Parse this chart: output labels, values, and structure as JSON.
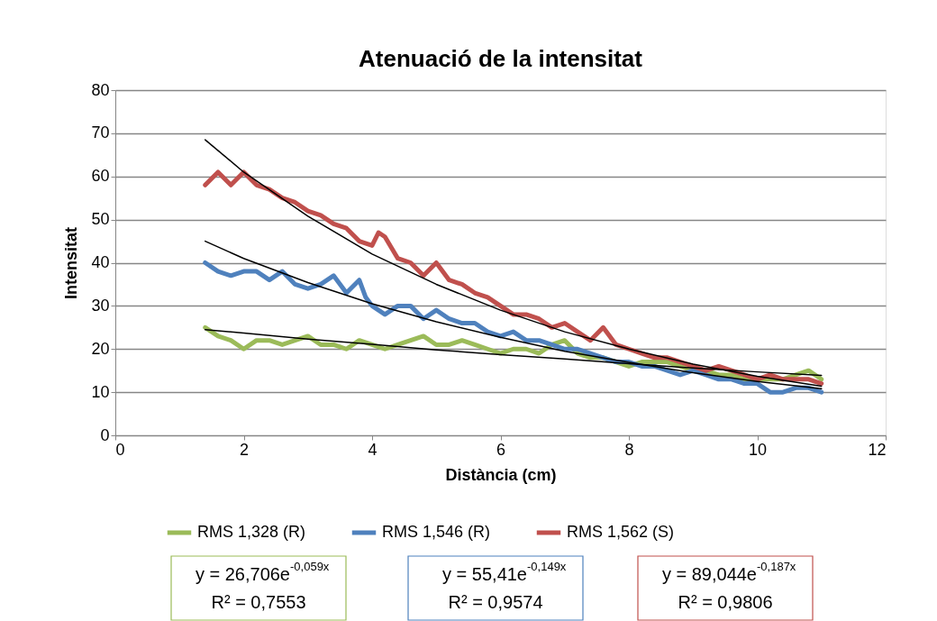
{
  "chart_data": {
    "type": "line",
    "title": "Atenuació de la intensitat",
    "xlabel": "Distància (cm)",
    "ylabel": "Intensitat",
    "xlim": [
      0,
      12
    ],
    "xticks": [
      0,
      2,
      4,
      6,
      8,
      10,
      12
    ],
    "ylim": [
      0,
      80
    ],
    "yticks": [
      0,
      10,
      20,
      30,
      40,
      50,
      60,
      70,
      80
    ],
    "grid": "y",
    "legend": "bottom",
    "line_style": "solid",
    "series": [
      {
        "name": "RMS 1,328 (R)",
        "color": "#9bbb59",
        "x": [
          1.4,
          1.6,
          1.8,
          2.0,
          2.2,
          2.4,
          2.6,
          2.8,
          3.0,
          3.2,
          3.4,
          3.6,
          3.8,
          4.0,
          4.2,
          4.4,
          4.6,
          4.8,
          5.0,
          5.2,
          5.4,
          5.6,
          5.8,
          6.0,
          6.2,
          6.4,
          6.6,
          6.8,
          7.0,
          7.2,
          7.4,
          7.6,
          7.8,
          8.0,
          8.2,
          8.4,
          8.6,
          8.8,
          9.0,
          9.2,
          9.4,
          9.6,
          9.8,
          10.0,
          10.2,
          10.4,
          10.6,
          10.8,
          11.0
        ],
        "values": [
          25,
          23,
          22,
          20,
          22,
          22,
          21,
          22,
          23,
          21,
          21,
          20,
          22,
          21,
          20,
          21,
          22,
          23,
          21,
          21,
          22,
          21,
          20,
          19,
          20,
          20,
          19,
          21,
          22,
          19,
          18,
          18,
          17,
          16,
          17,
          17,
          17,
          16,
          15,
          15,
          14,
          14,
          13,
          13,
          13,
          13,
          14,
          15,
          13
        ]
      },
      {
        "name": "RMS 1,546 (R)",
        "color": "#4f81bd",
        "x": [
          1.4,
          1.6,
          1.8,
          2.0,
          2.2,
          2.4,
          2.6,
          2.8,
          3.0,
          3.2,
          3.4,
          3.6,
          3.8,
          3.9,
          4.0,
          4.2,
          4.4,
          4.6,
          4.8,
          5.0,
          5.2,
          5.4,
          5.6,
          5.8,
          6.0,
          6.2,
          6.4,
          6.6,
          6.8,
          7.0,
          7.2,
          7.4,
          7.6,
          7.8,
          8.0,
          8.2,
          8.4,
          8.6,
          8.8,
          9.0,
          9.2,
          9.4,
          9.6,
          9.8,
          10.0,
          10.2,
          10.4,
          10.6,
          10.8,
          11.0
        ],
        "values": [
          40,
          38,
          37,
          38,
          38,
          36,
          38,
          35,
          34,
          35,
          37,
          33,
          36,
          32,
          30,
          28,
          30,
          30,
          27,
          29,
          27,
          26,
          26,
          24,
          23,
          24,
          22,
          22,
          21,
          20,
          20,
          19,
          18,
          17,
          17,
          16,
          16,
          15,
          14,
          15,
          14,
          13,
          13,
          12,
          12,
          10,
          10,
          11,
          11,
          10
        ]
      },
      {
        "name": "RMS 1,562 (S)",
        "color": "#c0504d",
        "x": [
          1.4,
          1.6,
          1.8,
          2.0,
          2.2,
          2.4,
          2.6,
          2.8,
          3.0,
          3.2,
          3.4,
          3.6,
          3.8,
          4.0,
          4.1,
          4.2,
          4.4,
          4.6,
          4.8,
          5.0,
          5.2,
          5.4,
          5.6,
          5.8,
          6.0,
          6.2,
          6.4,
          6.6,
          6.8,
          7.0,
          7.2,
          7.4,
          7.6,
          7.8,
          8.0,
          8.2,
          8.4,
          8.6,
          8.8,
          9.0,
          9.2,
          9.4,
          9.6,
          9.8,
          10.0,
          10.2,
          10.4,
          10.6,
          10.8,
          11.0
        ],
        "values": [
          58,
          61,
          58,
          61,
          58,
          57,
          55,
          54,
          52,
          51,
          49,
          48,
          45,
          44,
          47,
          46,
          41,
          40,
          37,
          40,
          36,
          35,
          33,
          32,
          30,
          28,
          28,
          27,
          25,
          26,
          24,
          22,
          25,
          21,
          20,
          19,
          18,
          18,
          17,
          16,
          15,
          16,
          15,
          14,
          13,
          14,
          13,
          13,
          13,
          12
        ]
      },
      {
        "type": "line",
        "color": "#000000",
        "x": [
          1.4,
          2,
          3,
          4,
          5,
          6,
          7,
          8,
          9,
          10,
          11
        ],
        "values": [
          24.5,
          23.7,
          22.3,
          21.1,
          19.8,
          18.7,
          17.7,
          16.6,
          15.6,
          14.7,
          13.9
        ]
      },
      {
        "type": "line",
        "color": "#000000",
        "x": [
          1.4,
          2,
          3,
          4,
          5,
          6,
          7,
          8,
          9,
          10,
          11
        ],
        "values": [
          45,
          41,
          35.4,
          30.5,
          26.3,
          22.7,
          19.5,
          16.9,
          14.5,
          12.5,
          10.8
        ]
      },
      {
        "type": "line",
        "color": "#000000",
        "x": [
          1.4,
          2,
          3,
          4,
          5,
          6,
          7,
          8,
          9,
          10,
          11
        ],
        "values": [
          68.5,
          61,
          50.8,
          42,
          35,
          29,
          24,
          20,
          16.5,
          13.7,
          11.4
        ]
      }
    ],
    "annotations": [
      "y = 26,706e$^{-0,059x}$",
      "R² = 0,7553",
      "y = 55,41e$^{-0,149x}$",
      "R² = 0,9574",
      "y = 89,044e$^{-0,187x}$",
      "R² = 0,9806"
    ]
  }
}
